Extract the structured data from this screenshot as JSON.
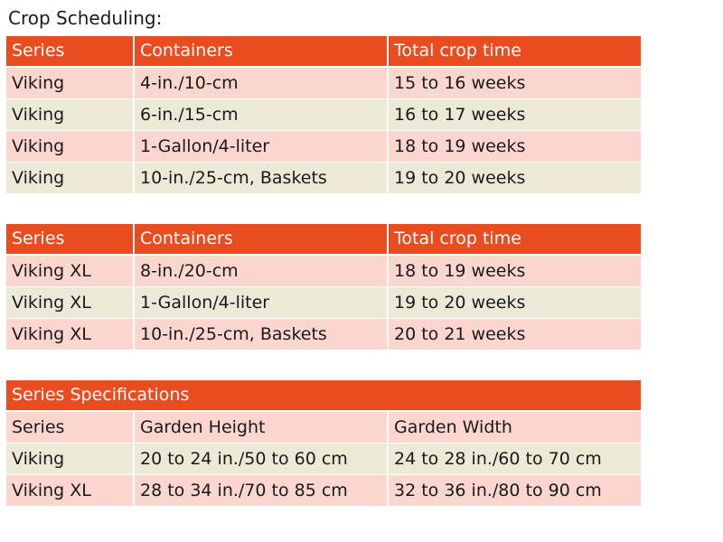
{
  "title": "Crop Scheduling:",
  "colors": {
    "header": "#e84c1f",
    "row_pink": "#fbd6cf",
    "row_beige": "#ecead6"
  },
  "table1": {
    "headers": [
      "Series",
      "Containers",
      "Total crop time"
    ],
    "rows": [
      [
        "Viking",
        "4-in./10-cm",
        "15 to 16 weeks"
      ],
      [
        "Viking",
        "6-in./15-cm",
        "16 to 17 weeks"
      ],
      [
        "Viking",
        "1-Gallon/4-liter",
        "18 to 19 weeks"
      ],
      [
        "Viking",
        "10-in./25-cm, Baskets",
        "19 to 20 weeks"
      ]
    ]
  },
  "table2": {
    "headers": [
      "Series",
      "Containers",
      "Total crop time"
    ],
    "rows": [
      [
        "Viking XL",
        "8-in./20-cm",
        "18 to 19 weeks"
      ],
      [
        "Viking XL",
        "1-Gallon/4-liter",
        "19 to 20 weeks"
      ],
      [
        "Viking XL",
        "10-in./25-cm, Baskets",
        "20 to 21 weeks"
      ]
    ]
  },
  "table3": {
    "caption": "Series Specifications",
    "headers": [
      "Series",
      "Garden Height",
      "Garden Width"
    ],
    "rows": [
      [
        "Viking",
        "20 to 24 in./50 to 60 cm",
        "24 to 28 in./60 to 70 cm"
      ],
      [
        "Viking XL",
        "28 to 34 in./70 to 85 cm",
        "32 to 36 in./80 to 90 cm"
      ]
    ]
  }
}
